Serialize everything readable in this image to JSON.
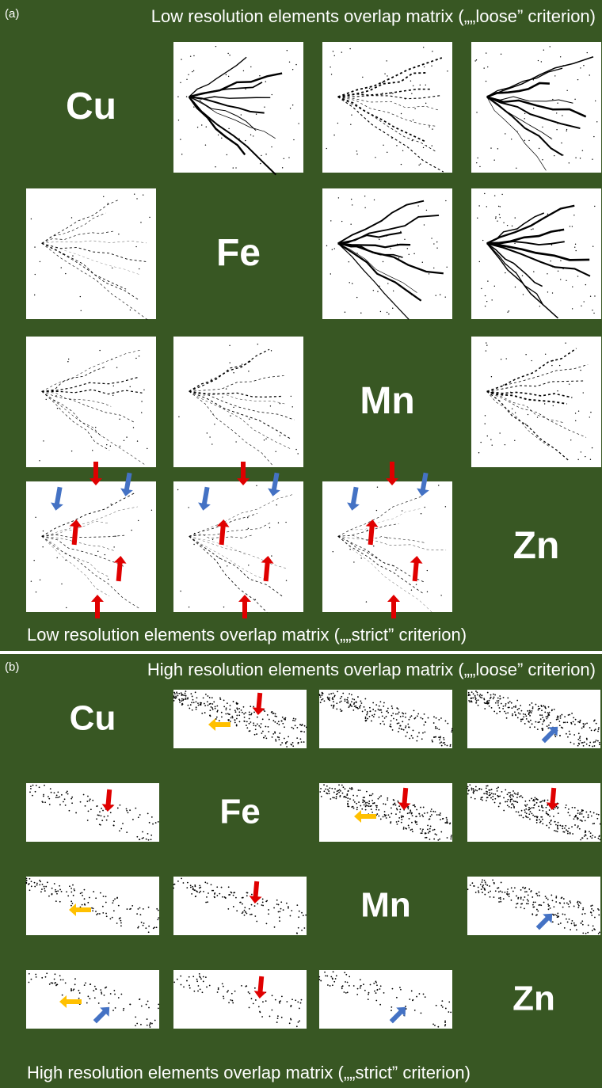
{
  "panels": [
    {
      "label": "(a)",
      "title": "Low resolution elements overlap matrix („„loose” criterion)",
      "footer": "Low resolution elements overlap matrix („„strict” criterion)",
      "elements": [
        "Cu",
        "Fe",
        "Mn",
        "Zn"
      ]
    },
    {
      "label": "(b)",
      "title": "High resolution elements overlap matrix („„loose” criterion)",
      "footer": "High resolution elements overlap matrix („„strict” criterion)",
      "elements": [
        "Cu",
        "Fe",
        "Mn",
        "Zn"
      ]
    }
  ]
}
